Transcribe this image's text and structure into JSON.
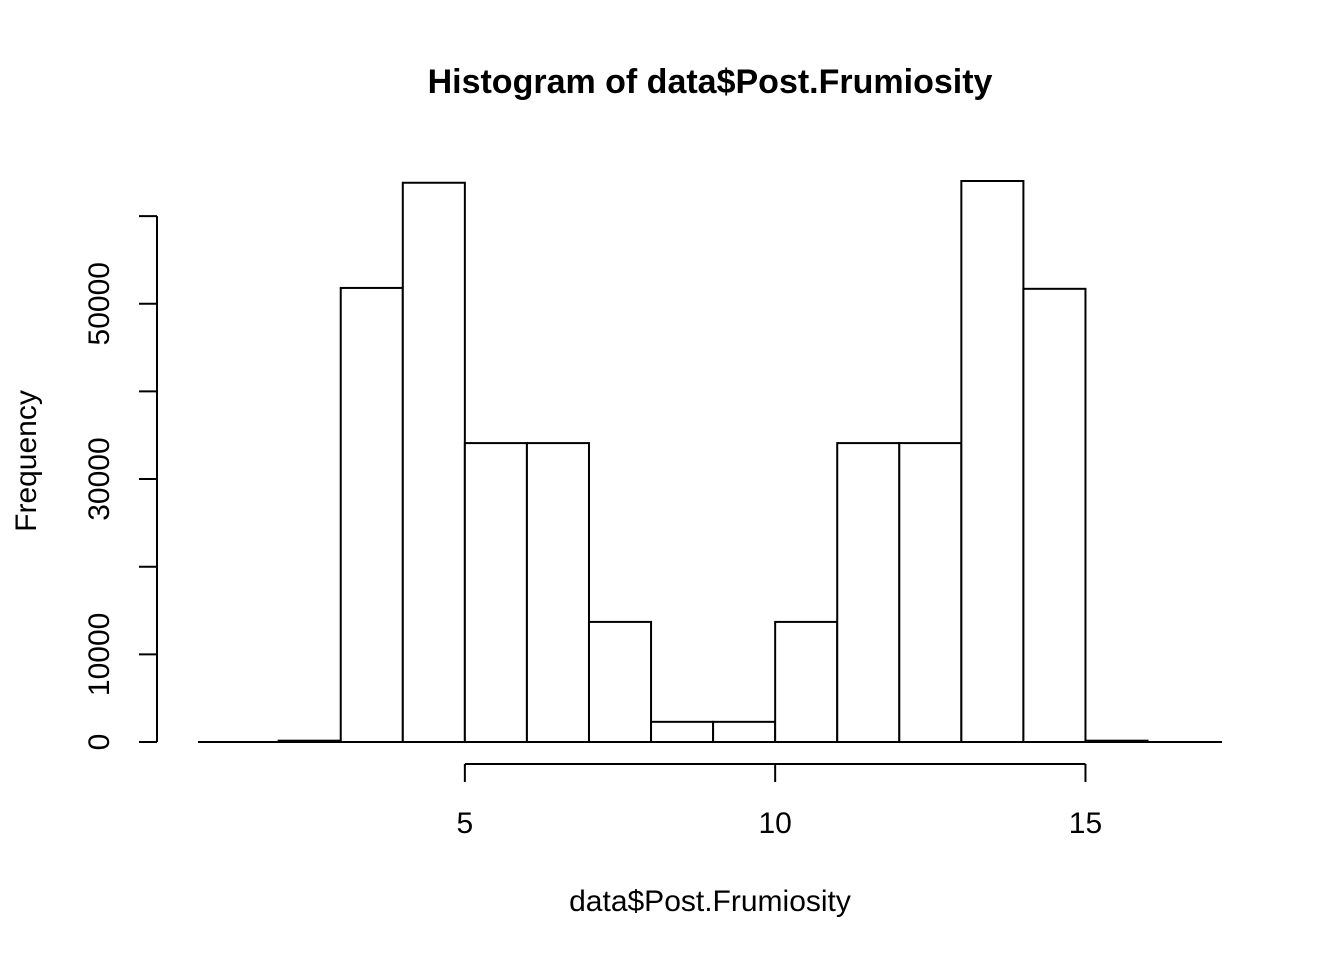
{
  "chart_data": {
    "type": "bar",
    "title": "Histogram of data$Post.Frumiosity",
    "xlabel": "data$Post.Frumiosity",
    "ylabel": "Frequency",
    "bins": [
      {
        "from": 2,
        "to": 3,
        "count": 150
      },
      {
        "from": 3,
        "to": 4,
        "count": 51800
      },
      {
        "from": 4,
        "to": 5,
        "count": 63800
      },
      {
        "from": 5,
        "to": 6,
        "count": 34100
      },
      {
        "from": 6,
        "to": 7,
        "count": 34100
      },
      {
        "from": 7,
        "to": 8,
        "count": 13700
      },
      {
        "from": 8,
        "to": 9,
        "count": 2300
      },
      {
        "from": 9,
        "to": 10,
        "count": 2300
      },
      {
        "from": 10,
        "to": 11,
        "count": 13700
      },
      {
        "from": 11,
        "to": 12,
        "count": 34100
      },
      {
        "from": 12,
        "to": 13,
        "count": 34100
      },
      {
        "from": 13,
        "to": 14,
        "count": 64000
      },
      {
        "from": 14,
        "to": 15,
        "count": 51700
      },
      {
        "from": 15,
        "to": 16,
        "count": 150
      }
    ],
    "xlim": [
      0.7,
      17.2
    ],
    "ylim": [
      0,
      64000
    ],
    "x_axis_range": [
      5,
      15
    ],
    "x_ticks": [
      5,
      10,
      15
    ],
    "x_tick_labels": [
      "5",
      "10",
      "15"
    ],
    "y_axis_range": [
      0,
      60000
    ],
    "y_ticks": [
      0,
      10000,
      20000,
      30000,
      40000,
      50000,
      60000
    ],
    "y_tick_labels": [
      "0",
      "10000",
      "",
      "30000",
      "",
      "50000",
      ""
    ],
    "baseline": true,
    "grid": false,
    "legend": "none",
    "colors": {
      "bar_fill": "#ffffff",
      "bar_stroke": "#000000"
    }
  }
}
